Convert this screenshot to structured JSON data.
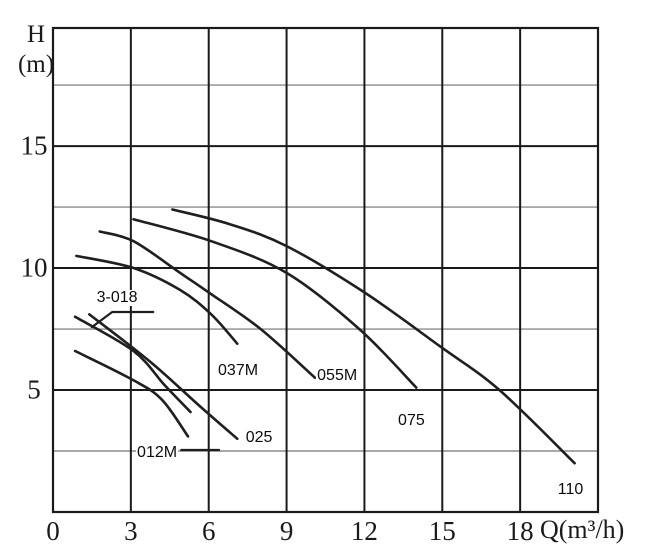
{
  "axis": {
    "y_title_line1": "H",
    "y_title_line2": "(m)",
    "x_title": "Q(m³/h)"
  },
  "colors": {
    "background": "#ffffff",
    "grid_major": "#1a1a1a",
    "grid_minor": "#8c8c8c",
    "curve": "#1f1f1f",
    "text": "#000000"
  },
  "chart_data": {
    "type": "line",
    "title": "",
    "xlabel": "Q(m³/h)",
    "ylabel": "H (m)",
    "xlim": [
      0,
      21
    ],
    "ylim": [
      0,
      19.84
    ],
    "grid": true,
    "x_gridline_step": 3,
    "y_gridline_step": 2.5,
    "y_major_gridlines": [
      5,
      10,
      15
    ],
    "x_tick_labels": [
      0,
      3,
      6,
      9,
      12,
      15,
      18
    ],
    "y_tick_labels": [
      15,
      10,
      5
    ],
    "legend_position": "inline-labels",
    "series": [
      {
        "name": "3-018",
        "label": "3-018",
        "points": [
          [
            0.85,
            8.0
          ],
          [
            3.1,
            6.6
          ],
          [
            4.3,
            5.2
          ],
          [
            5.3,
            4.1
          ]
        ],
        "label_at": [
          2.47,
          8.77
        ]
      },
      {
        "name": "012M",
        "label": "012M",
        "points": [
          [
            0.85,
            6.6
          ],
          [
            3.1,
            5.4
          ],
          [
            4.2,
            4.6
          ],
          [
            5.2,
            3.1
          ]
        ],
        "label_at": [
          4.01,
          2.42
        ]
      },
      {
        "name": "025",
        "label": "025",
        "points": [
          [
            1.4,
            8.1
          ],
          [
            3.7,
            6.2
          ],
          [
            5.7,
            4.3
          ],
          [
            7.1,
            3.0
          ]
        ],
        "label_at": [
          7.94,
          3.03
        ]
      },
      {
        "name": "037M",
        "label": "037M",
        "points": [
          [
            0.9,
            10.5
          ],
          [
            3.1,
            10.0
          ],
          [
            4.9,
            9.1
          ],
          [
            6.1,
            8.1
          ],
          [
            7.1,
            6.9
          ]
        ],
        "label_at": [
          7.13,
          5.78
        ]
      },
      {
        "name": "055M",
        "label": "055M",
        "points": [
          [
            1.8,
            11.5
          ],
          [
            3.1,
            11.1
          ],
          [
            4.9,
            9.8
          ],
          [
            6.0,
            9.0
          ],
          [
            8.0,
            7.5
          ],
          [
            10.1,
            5.5
          ]
        ],
        "label_at": [
          10.95,
          5.57
        ]
      },
      {
        "name": "075",
        "label": "075",
        "points": [
          [
            3.1,
            12.0
          ],
          [
            6.1,
            11.1
          ],
          [
            9.0,
            9.8
          ],
          [
            11.8,
            7.5
          ],
          [
            14.0,
            5.1
          ]
        ],
        "label_at": [
          13.81,
          3.73
        ]
      },
      {
        "name": "110",
        "label": "110",
        "points": [
          [
            4.6,
            12.4
          ],
          [
            6.8,
            11.8
          ],
          [
            9.0,
            10.9
          ],
          [
            12.0,
            9.0
          ],
          [
            14.9,
            6.8
          ],
          [
            17.2,
            5.0
          ],
          [
            20.1,
            2.0
          ]
        ],
        "label_at": [
          19.94,
          0.9
        ]
      }
    ],
    "leader_lines": [
      {
        "for": "3-018",
        "points": [
          [
            1.5,
            7.58
          ],
          [
            2.28,
            8.2
          ],
          [
            3.86,
            8.2
          ]
        ]
      },
      {
        "for": "012M",
        "points": [
          [
            4.94,
            2.54
          ],
          [
            6.4,
            2.54
          ]
        ]
      }
    ]
  }
}
